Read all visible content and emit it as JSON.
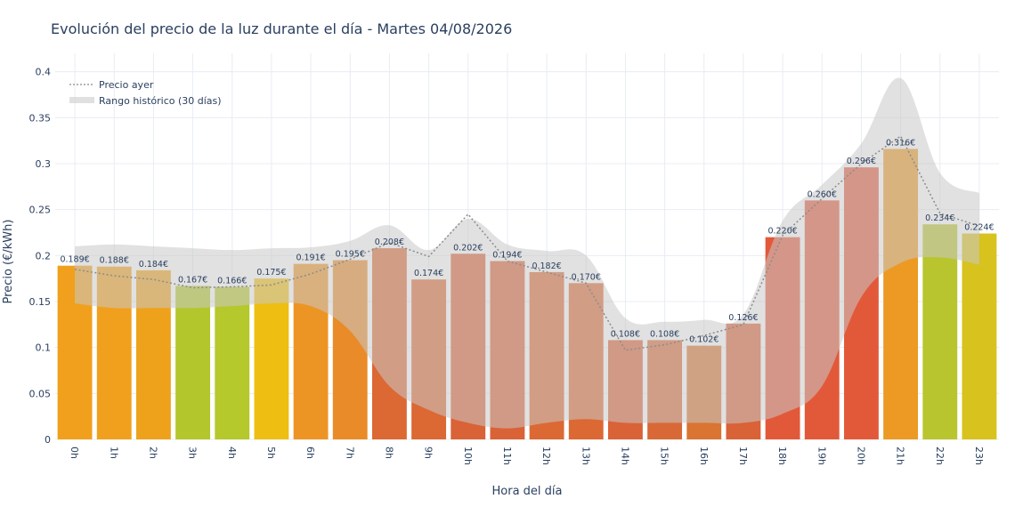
{
  "chart_data": {
    "type": "bar",
    "title": "Evolución del precio de la luz durante el día - Martes 04/08/2026",
    "xlabel": "Hora del día",
    "ylabel": "Precio (€/kWh)",
    "ylim": [
      0,
      0.42
    ],
    "yticks": [
      "0",
      "0.05",
      "0.1",
      "0.15",
      "0.2",
      "0.25",
      "0.3",
      "0.35",
      "0.4"
    ],
    "ytick_values": [
      0,
      0.05,
      0.1,
      0.15,
      0.2,
      0.25,
      0.3,
      0.35,
      0.4
    ],
    "categories": [
      "0h",
      "1h",
      "2h",
      "3h",
      "4h",
      "5h",
      "6h",
      "7h",
      "8h",
      "9h",
      "10h",
      "11h",
      "12h",
      "13h",
      "14h",
      "15h",
      "16h",
      "17h",
      "18h",
      "19h",
      "20h",
      "21h",
      "22h",
      "23h"
    ],
    "values": [
      0.189,
      0.188,
      0.184,
      0.167,
      0.166,
      0.175,
      0.191,
      0.195,
      0.208,
      0.174,
      0.202,
      0.194,
      0.182,
      0.17,
      0.108,
      0.108,
      0.102,
      0.126,
      0.22,
      0.26,
      0.296,
      0.316,
      0.234,
      0.224
    ],
    "labels": [
      "0.189€",
      "0.188€",
      "0.184€",
      "0.167€",
      "0.166€",
      "0.175€",
      "0.191€",
      "0.195€",
      "0.208€",
      "0.174€",
      "0.202€",
      "0.194€",
      "0.182€",
      "0.170€",
      "0.108€",
      "0.108€",
      "0.102€",
      "0.126€",
      "0.220€",
      "0.260€",
      "0.296€",
      "0.316€",
      "0.234€",
      "0.224€"
    ],
    "bar_colors": [
      "#f0a01c",
      "#f0a01c",
      "#eea21c",
      "#b3c72c",
      "#b5c82c",
      "#efbe12",
      "#ed9524",
      "#e98b28",
      "#dc6834",
      "#dc6834",
      "#da6237",
      "#da6237",
      "#dc6834",
      "#dc6834",
      "#da6237",
      "#d96837",
      "#d97432",
      "#da6237",
      "#e2593a",
      "#e2593a",
      "#e2593a",
      "#ec9a24",
      "#b9c52e",
      "#d8c21e"
    ],
    "series": [
      {
        "name": "Precio ayer",
        "type": "line",
        "style": "dotted",
        "values": [
          0.185,
          0.178,
          0.174,
          0.165,
          0.166,
          0.168,
          0.18,
          0.196,
          0.214,
          0.199,
          0.245,
          0.194,
          0.182,
          0.17,
          0.097,
          0.103,
          0.113,
          0.125,
          0.222,
          0.262,
          0.3,
          0.33,
          0.246,
          0.232
        ]
      },
      {
        "name": "Rango histórico (30 días)",
        "type": "band",
        "lower": [
          0.148,
          0.143,
          0.143,
          0.143,
          0.145,
          0.148,
          0.145,
          0.118,
          0.058,
          0.032,
          0.018,
          0.012,
          0.018,
          0.022,
          0.018,
          0.018,
          0.018,
          0.018,
          0.028,
          0.058,
          0.155,
          0.192,
          0.198,
          0.19
        ],
        "upper": [
          0.21,
          0.212,
          0.21,
          0.208,
          0.206,
          0.208,
          0.209,
          0.216,
          0.233,
          0.206,
          0.24,
          0.212,
          0.205,
          0.2,
          0.132,
          0.128,
          0.13,
          0.136,
          0.238,
          0.277,
          0.322,
          0.393,
          0.29,
          0.268
        ]
      }
    ],
    "legend": [
      "Precio ayer",
      "Rango histórico (30 días)"
    ],
    "legend_position": "top-left",
    "grid": true
  }
}
